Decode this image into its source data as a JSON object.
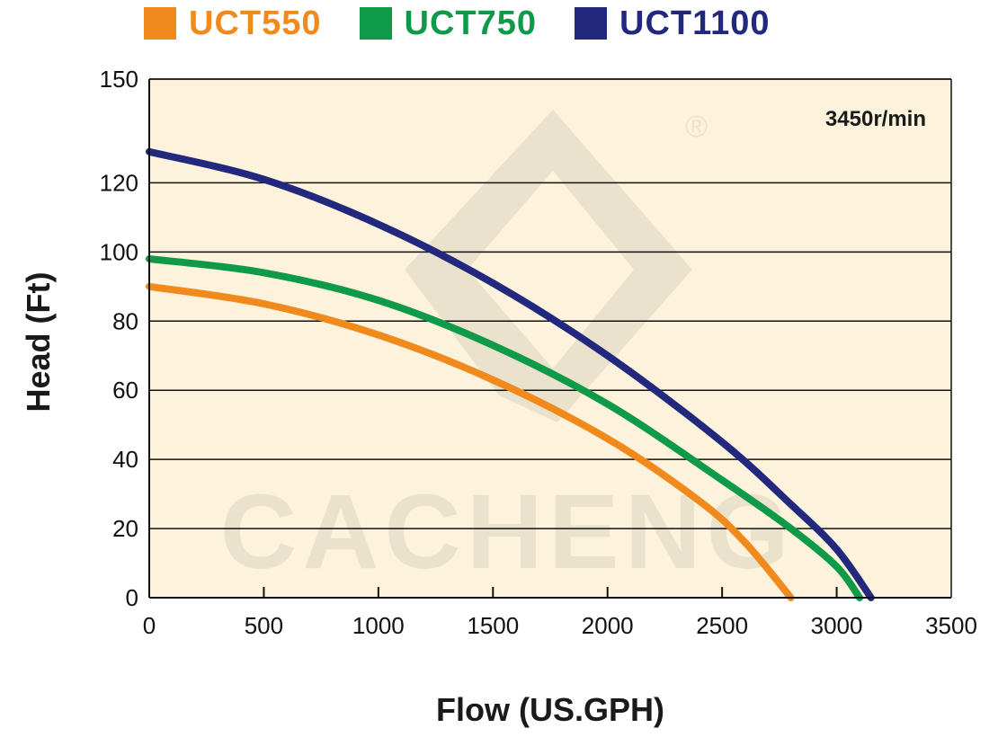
{
  "chart_data": {
    "type": "line",
    "title": "",
    "xlabel": "Flow (US.GPH)",
    "ylabel": "Head (Ft)",
    "xlim": [
      0,
      3500
    ],
    "ylim": [
      0,
      150
    ],
    "xticks": [
      0,
      500,
      1000,
      1500,
      2000,
      2500,
      3000,
      3500
    ],
    "yticks": [
      0,
      20,
      40,
      60,
      80,
      100,
      120,
      150
    ],
    "grid": "horizontal",
    "legend_position": "top",
    "annotation": "3450r/min",
    "background_color": "#fdf3dc",
    "series": [
      {
        "name": "UCT550",
        "color": "#f08a1c",
        "x": [
          0,
          500,
          1000,
          1500,
          2000,
          2400,
          2600,
          2800
        ],
        "y": [
          90,
          85,
          76,
          63,
          46,
          28,
          16,
          0
        ]
      },
      {
        "name": "UCT750",
        "color": "#0f9a4a",
        "x": [
          0,
          500,
          1000,
          1500,
          2000,
          2500,
          2800,
          3000,
          3100
        ],
        "y": [
          98,
          94,
          86,
          73,
          56,
          34,
          20,
          9,
          0
        ]
      },
      {
        "name": "UCT1100",
        "color": "#23287f",
        "x": [
          0,
          500,
          1000,
          1500,
          2000,
          2500,
          2800,
          3000,
          3150
        ],
        "y": [
          129,
          121,
          108,
          91,
          70,
          45,
          27,
          14,
          0
        ]
      }
    ]
  },
  "watermark": {
    "text": "CACHENG",
    "symbol": "®"
  }
}
